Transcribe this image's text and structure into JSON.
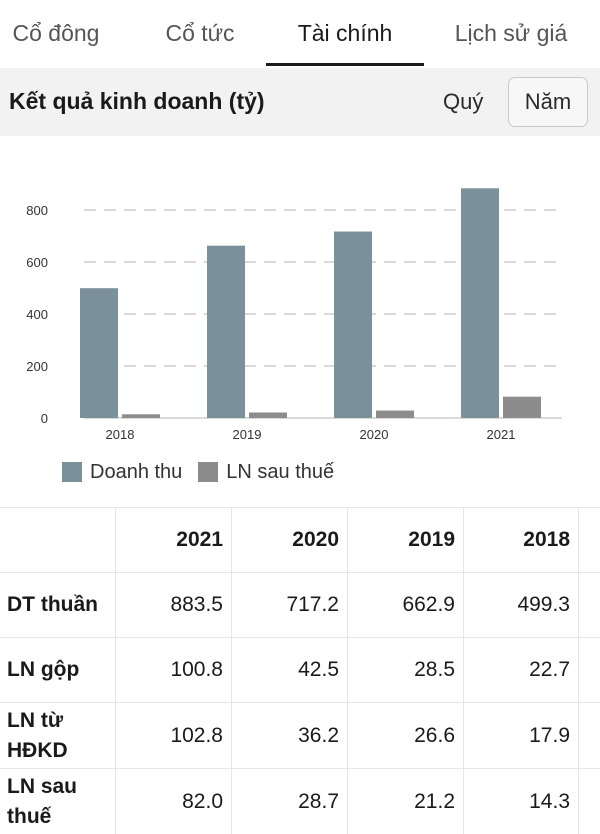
{
  "tabs": [
    {
      "label": "Cổ đông"
    },
    {
      "label": "Cổ tức"
    },
    {
      "label": "Tài chính"
    },
    {
      "label": "Lịch sử giá"
    }
  ],
  "section": {
    "title": "Kết quả kinh doanh (tỷ)",
    "period_quarter": "Quý",
    "period_year": "Năm"
  },
  "chart_data": {
    "type": "bar",
    "categories": [
      "2018",
      "2019",
      "2020",
      "2021"
    ],
    "series": [
      {
        "name": "Doanh thu",
        "values": [
          499.3,
          662.9,
          717.2,
          883.5
        ],
        "color": "#7a919b"
      },
      {
        "name": "LN sau thuế",
        "values": [
          14.3,
          21.2,
          28.7,
          82.0
        ],
        "color": "#8c8c8c"
      }
    ],
    "yticks": [
      "0",
      "200",
      "400",
      "600",
      "800"
    ],
    "ylim": [
      0,
      900
    ],
    "grid": true,
    "legend": "bottom-left"
  },
  "table": {
    "headers": [
      "",
      "2021",
      "2020",
      "2019",
      "2018"
    ],
    "rows": [
      {
        "label": "DT thuần",
        "values": [
          "883.5",
          "717.2",
          "662.9",
          "499.3"
        ]
      },
      {
        "label": "LN gộp",
        "values": [
          "100.8",
          "42.5",
          "28.5",
          "22.7"
        ]
      },
      {
        "label": "LN từ HĐKD",
        "values": [
          "102.8",
          "36.2",
          "26.6",
          "17.9"
        ]
      },
      {
        "label": "LN sau thuế",
        "values": [
          "82.0",
          "28.7",
          "21.2",
          "14.3"
        ]
      }
    ]
  }
}
